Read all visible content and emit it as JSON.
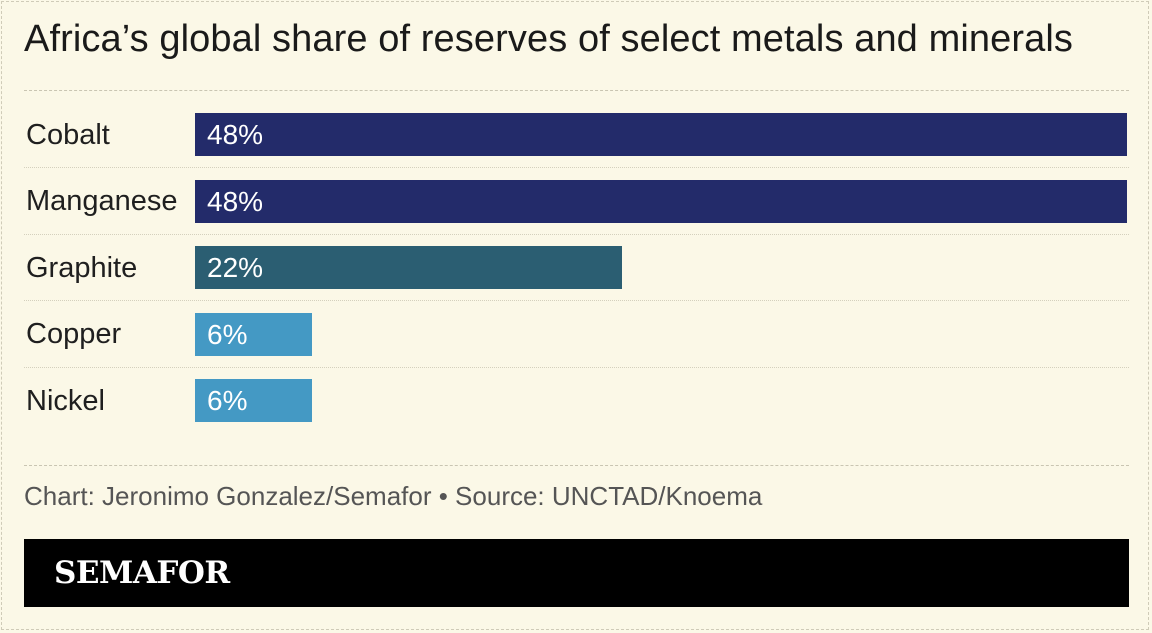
{
  "chart_data": {
    "type": "bar",
    "orientation": "horizontal",
    "title": "Africa’s global share of reserves of select metals and minerals",
    "categories": [
      "Cobalt",
      "Manganese",
      "Graphite",
      "Copper",
      "Nickel"
    ],
    "values": [
      48,
      48,
      22,
      6,
      6
    ],
    "value_labels": [
      "48%",
      "48%",
      "22%",
      "6%",
      "6%"
    ],
    "bar_colors": [
      "#232b6a",
      "#232b6a",
      "#2b5e72",
      "#4499c4",
      "#4499c4"
    ],
    "xlim": [
      0,
      48
    ],
    "grid": false,
    "legend": "none"
  },
  "credit": "Chart: Jeronimo Gonzalez/Semafor • Source: UNCTAD/Knoema",
  "brand": {
    "logo_text": "SEMAFOR"
  },
  "colors": {
    "background": "#fbf8e7",
    "footer_background": "#000000",
    "bar_dark": "#232b6a",
    "bar_mid": "#2b5e72",
    "bar_light": "#4499c4"
  }
}
